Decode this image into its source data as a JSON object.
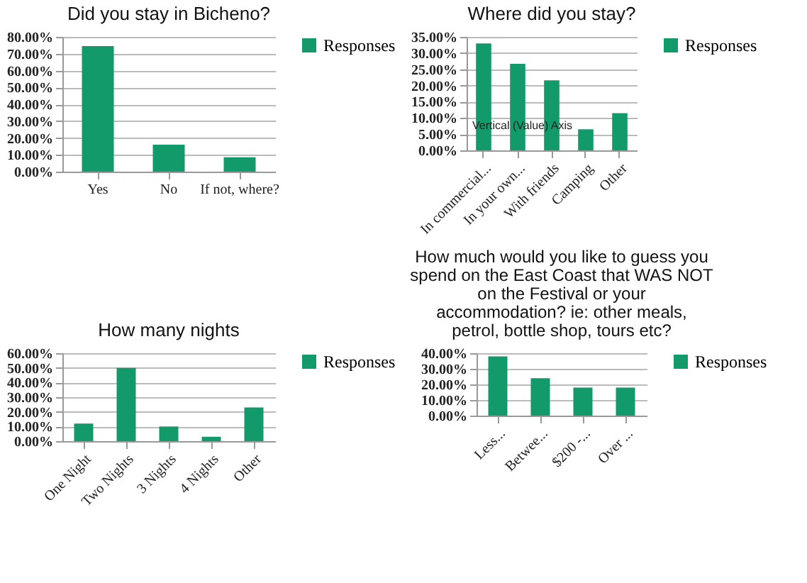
{
  "chart_data": [
    {
      "type": "bar",
      "title": "Did you stay in Bicheno?",
      "categories": [
        "Yes",
        "No",
        "If not, where?"
      ],
      "series": [
        {
          "name": "Responses",
          "color": "#129a6a",
          "values": [
            74.5,
            16,
            8.5
          ]
        }
      ],
      "ylim": [
        0,
        80
      ],
      "yticks": [
        {
          "value": 0,
          "label": "0.00%"
        },
        {
          "value": 10,
          "label": "10.00%"
        },
        {
          "value": 20,
          "label": "20.00%"
        },
        {
          "value": 30,
          "label": "30.00%"
        },
        {
          "value": 40,
          "label": "40.00%"
        },
        {
          "value": 50,
          "label": "50.00%"
        },
        {
          "value": 60,
          "label": "60.00%"
        },
        {
          "value": 70,
          "label": "70.00%"
        },
        {
          "value": 80,
          "label": "80.00%"
        }
      ],
      "grid": "y",
      "legend": "right"
    },
    {
      "type": "bar",
      "title": "Where did you stay?",
      "categories": [
        "In commercial...",
        "In your own...",
        "With friends",
        "Camping",
        "Other"
      ],
      "series": [
        {
          "name": "Responses",
          "color": "#129a6a",
          "values": [
            33,
            26.7,
            21.6,
            6.5,
            11.5
          ]
        }
      ],
      "ylim": [
        0,
        35
      ],
      "yticks": [
        {
          "value": 0,
          "label": "0.00%"
        },
        {
          "value": 5,
          "label": "5.00%"
        },
        {
          "value": 10,
          "label": "10.00%"
        },
        {
          "value": 15,
          "label": "15.00%"
        },
        {
          "value": 20,
          "label": "20.00%"
        },
        {
          "value": 25,
          "label": "25.00%"
        },
        {
          "value": 30,
          "label": "30.00%"
        },
        {
          "value": 35,
          "label": "35.00%"
        }
      ],
      "annotations": [
        "Vertical (Value) Axis"
      ],
      "grid": "y",
      "legend": "right"
    },
    {
      "type": "bar",
      "title": "How many nights",
      "categories": [
        "One Night",
        "Two Nights",
        "3 Nights",
        "4 Nights",
        "Other"
      ],
      "series": [
        {
          "name": "Responses",
          "color": "#129a6a",
          "values": [
            12,
            50,
            10,
            3,
            23
          ]
        }
      ],
      "ylim": [
        0,
        60
      ],
      "yticks": [
        {
          "value": 0,
          "label": "0.00%"
        },
        {
          "value": 10,
          "label": "10.00%"
        },
        {
          "value": 20,
          "label": "20.00%"
        },
        {
          "value": 30,
          "label": "30.00%"
        },
        {
          "value": 40,
          "label": "40.00%"
        },
        {
          "value": 50,
          "label": "50.00%"
        },
        {
          "value": 60,
          "label": "60.00%"
        }
      ],
      "grid": "y",
      "legend": "right"
    },
    {
      "type": "bar",
      "title": "How much would you like to guess you spend on the East Coast that WAS NOT on the Festival or your accommodation?  ie: other meals, petrol, bottle shop, tours etc?",
      "categories": [
        "Less...",
        "Betwee...",
        "$200 -...",
        "Over ..."
      ],
      "series": [
        {
          "name": "Responses",
          "color": "#129a6a",
          "values": [
            38,
            24,
            18,
            18
          ]
        }
      ],
      "ylim": [
        0,
        40
      ],
      "yticks": [
        {
          "value": 0,
          "label": "0.00%"
        },
        {
          "value": 10,
          "label": "10.00%"
        },
        {
          "value": 20,
          "label": "20.00%"
        },
        {
          "value": 30,
          "label": "30.00%"
        },
        {
          "value": 40,
          "label": "40.00%"
        }
      ],
      "grid": "y",
      "legend": "right"
    }
  ]
}
